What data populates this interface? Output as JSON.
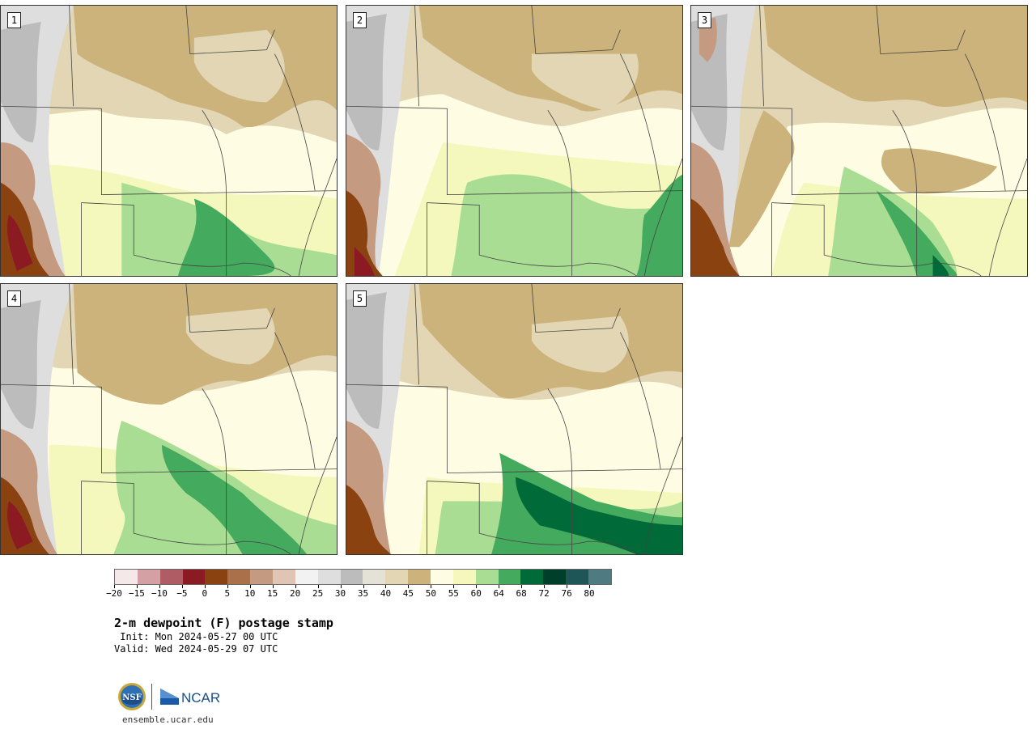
{
  "panels": [
    {
      "label": "1"
    },
    {
      "label": "2"
    },
    {
      "label": "3"
    },
    {
      "label": "4"
    },
    {
      "label": "5"
    }
  ],
  "colorbar": {
    "colors": [
      "#f4e8e8",
      "#d4a0a4",
      "#b05c64",
      "#8c1a22",
      "#8a4210",
      "#a8714a",
      "#c49a80",
      "#e0c4b4",
      "#f2f2f2",
      "#dedede",
      "#bcbcbc",
      "#e4e2d6",
      "#e2d6b4",
      "#ccb37c",
      "#fefde4",
      "#f4f8bc",
      "#aadd94",
      "#44aa5e",
      "#006a38",
      "#00402a",
      "#1e5658",
      "#4e7a80"
    ],
    "tick_labels": [
      "−20",
      "−15",
      "−10",
      "−5",
      "0",
      "5",
      "10",
      "15",
      "20",
      "25",
      "30",
      "35",
      "40",
      "45",
      "50",
      "55",
      "60",
      "64",
      "68",
      "72",
      "76",
      "80"
    ]
  },
  "title": "2-m dewpoint (F) postage stamp",
  "init": " Init: Mon 2024-05-27 00 UTC",
  "valid": "Valid: Wed 2024-05-29 07 UTC",
  "logos": {
    "nsf": "NSF",
    "ncar": "NCAR"
  },
  "site": "ensemble.ucar.edu"
}
